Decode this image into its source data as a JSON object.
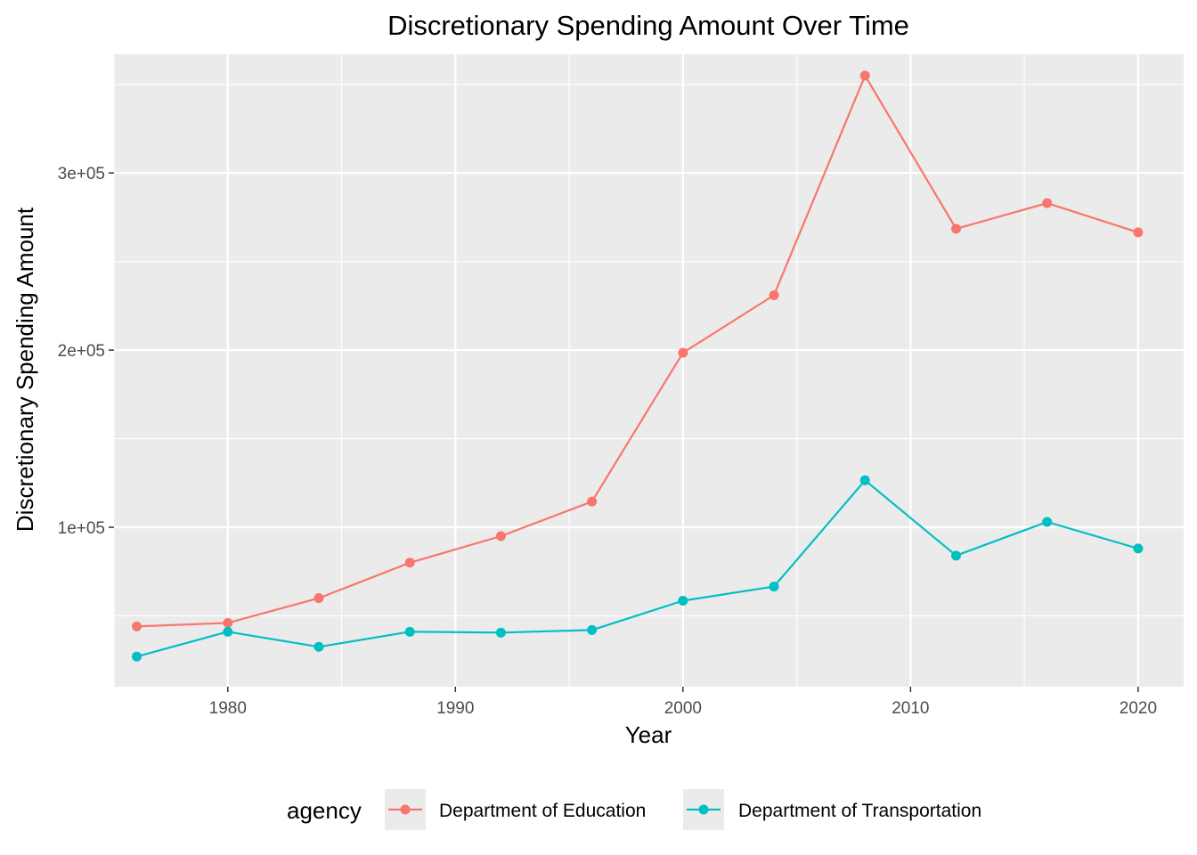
{
  "chart_data": {
    "type": "line",
    "title": "Discretionary Spending Amount Over Time",
    "xlabel": "Year",
    "ylabel": "Discretionary Spending Amount",
    "x": [
      1976,
      1980,
      1984,
      1988,
      1992,
      1996,
      2000,
      2004,
      2008,
      2012,
      2016,
      2020
    ],
    "xlim": [
      1975,
      2022
    ],
    "ylim": [
      10000,
      367000
    ],
    "x_ticks": [
      1980,
      1990,
      2000,
      2010,
      2020
    ],
    "x_tick_labels": [
      "1980",
      "1990",
      "2000",
      "2010",
      "2020"
    ],
    "y_ticks": [
      100000,
      200000,
      300000
    ],
    "y_tick_labels": [
      "1e+05",
      "2e+05",
      "3e+05"
    ],
    "grid": true,
    "legend_title": "agency",
    "legend_position": "bottom",
    "series": [
      {
        "name": "Department of Education",
        "color": "#F8766D",
        "values": [
          44000,
          46000,
          60000,
          80000,
          95000,
          114500,
          198500,
          231000,
          355000,
          268500,
          283000,
          266500
        ]
      },
      {
        "name": "Department of Transportation",
        "color": "#00BFC4",
        "values": [
          27000,
          41000,
          32500,
          41000,
          40500,
          42000,
          58500,
          66500,
          126500,
          84000,
          103000,
          88000
        ]
      }
    ]
  }
}
